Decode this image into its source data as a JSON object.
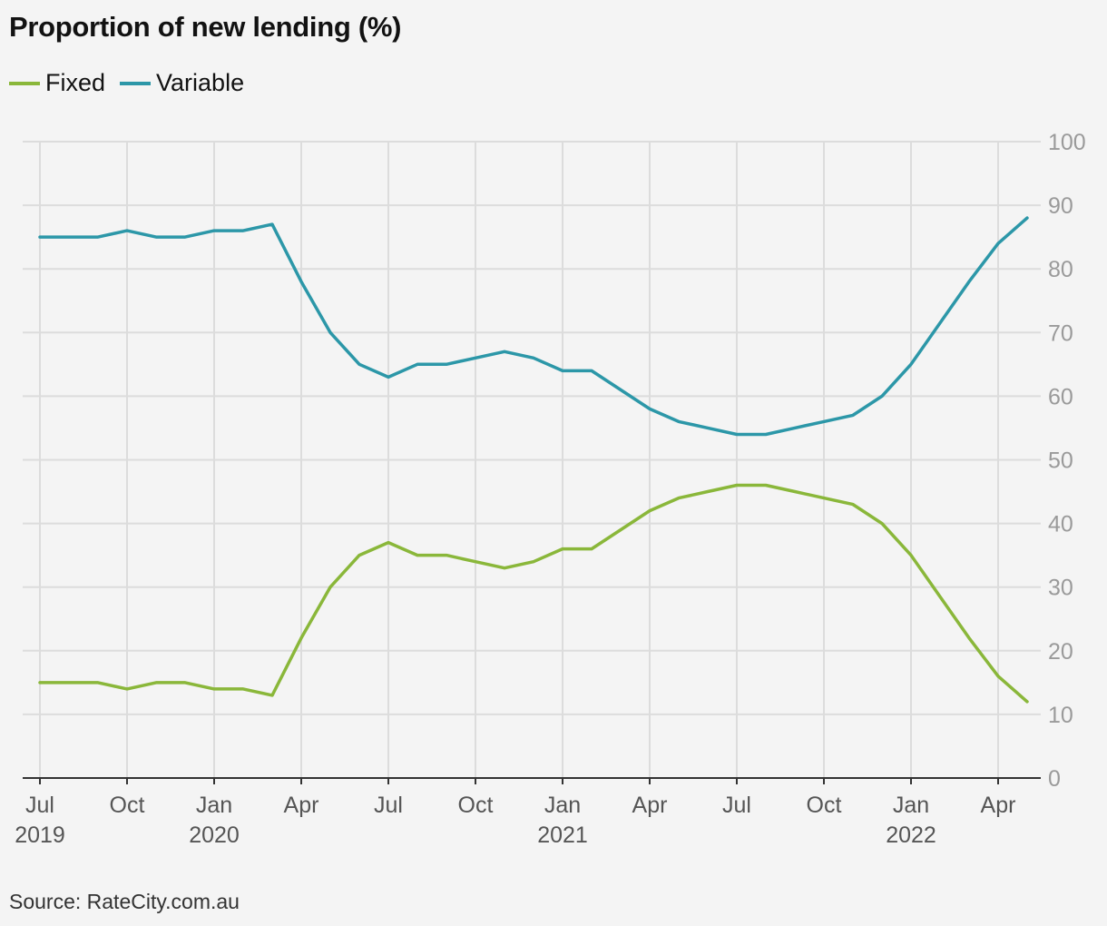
{
  "chart_data": {
    "type": "line",
    "title": "Proportion of new lending (%)",
    "source": "Source: RateCity.com.au",
    "ylim": [
      0,
      100
    ],
    "y_ticks": [
      0,
      10,
      20,
      30,
      40,
      50,
      60,
      70,
      80,
      90,
      100
    ],
    "y_axis_position": "right",
    "grid": true,
    "legend_position": "top-left",
    "x_ticks": [
      {
        "month": 0,
        "label": "Jul",
        "year": "2019"
      },
      {
        "month": 3,
        "label": "Oct",
        "year": ""
      },
      {
        "month": 6,
        "label": "Jan",
        "year": "2020"
      },
      {
        "month": 9,
        "label": "Apr",
        "year": ""
      },
      {
        "month": 12,
        "label": "Jul",
        "year": ""
      },
      {
        "month": 15,
        "label": "Oct",
        "year": ""
      },
      {
        "month": 18,
        "label": "Jan",
        "year": "2021"
      },
      {
        "month": 21,
        "label": "Apr",
        "year": ""
      },
      {
        "month": 24,
        "label": "Jul",
        "year": ""
      },
      {
        "month": 27,
        "label": "Oct",
        "year": ""
      },
      {
        "month": 30,
        "label": "Jan",
        "year": "2022"
      },
      {
        "month": 33,
        "label": "Apr",
        "year": ""
      }
    ],
    "x": [
      "2019-07",
      "2019-08",
      "2019-09",
      "2019-10",
      "2019-11",
      "2019-12",
      "2020-01",
      "2020-02",
      "2020-03",
      "2020-04",
      "2020-05",
      "2020-06",
      "2020-07",
      "2020-08",
      "2020-09",
      "2020-10",
      "2020-11",
      "2020-12",
      "2021-01",
      "2021-02",
      "2021-03",
      "2021-04",
      "2021-05",
      "2021-06",
      "2021-07",
      "2021-08",
      "2021-09",
      "2021-10",
      "2021-11",
      "2021-12",
      "2022-01",
      "2022-02",
      "2022-03",
      "2022-04",
      "2022-05"
    ],
    "series": [
      {
        "name": "Fixed",
        "color": "#8ab73a",
        "values": [
          15,
          15,
          15,
          14,
          15,
          15,
          14,
          14,
          13,
          22,
          30,
          35,
          37,
          35,
          35,
          34,
          33,
          34,
          36,
          36,
          39,
          42,
          44,
          45,
          46,
          46,
          45,
          44,
          43,
          40,
          35,
          28.5,
          22,
          16,
          12
        ]
      },
      {
        "name": "Variable",
        "color": "#2c97a8",
        "values": [
          85,
          85,
          85,
          86,
          85,
          85,
          86,
          86,
          87,
          78,
          70,
          65,
          63,
          65,
          65,
          66,
          67,
          66,
          64,
          64,
          61,
          58,
          56,
          55,
          54,
          54,
          55,
          56,
          57,
          60,
          65,
          71.5,
          78,
          84,
          88
        ]
      }
    ]
  }
}
